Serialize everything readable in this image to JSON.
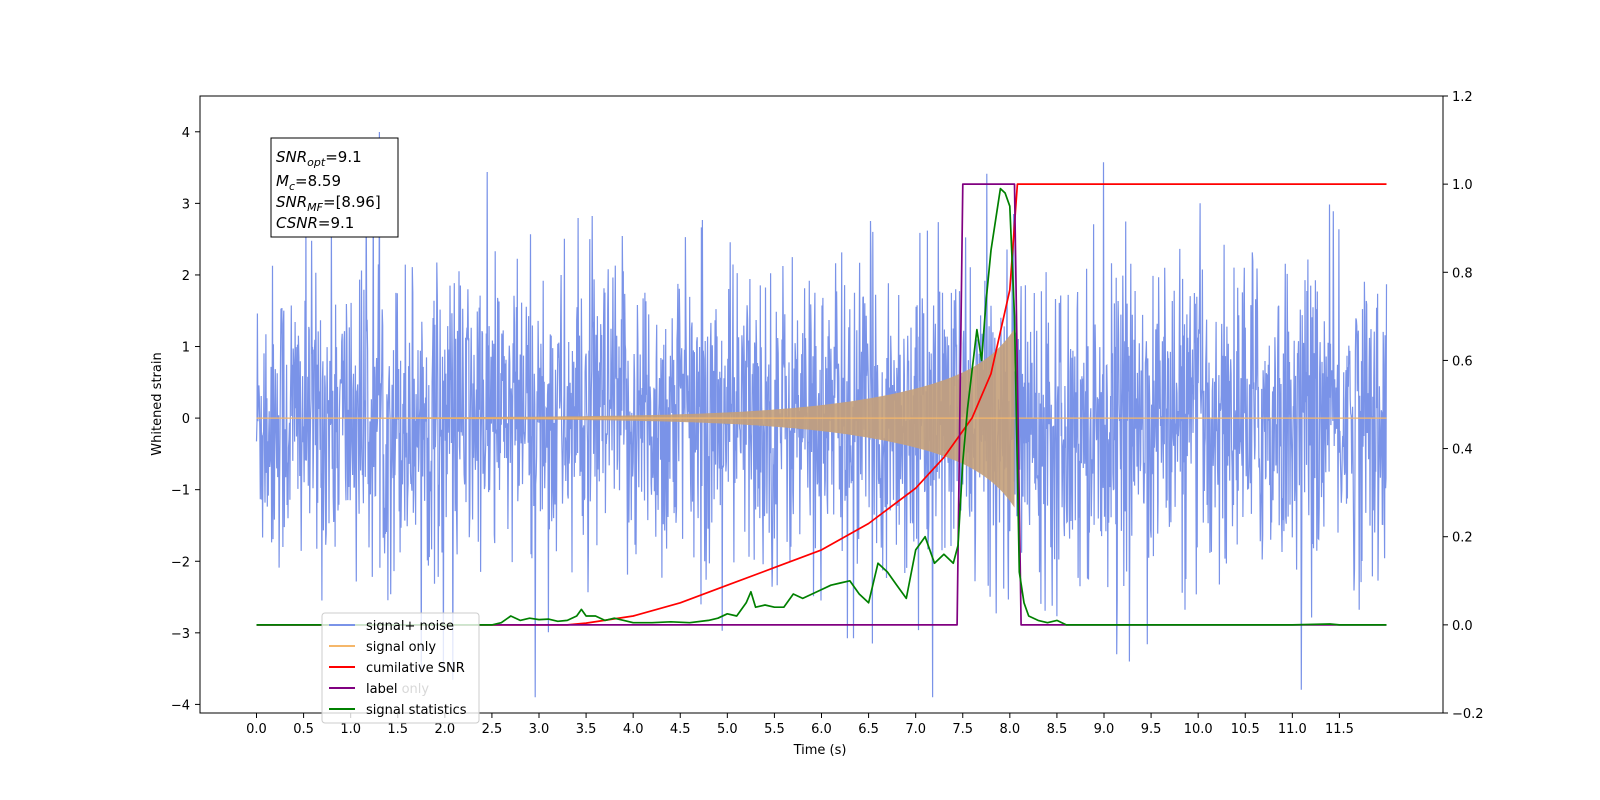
{
  "chart_data": {
    "type": "line",
    "xlabel": "Time (s)",
    "ylabel": "Whitened strain",
    "xlim": [
      -0.6,
      12.6
    ],
    "ylim": [
      -4.12,
      4.5
    ],
    "ylim_right": [
      -0.2,
      1.2
    ],
    "x_ticks": [
      "0.0",
      "0.5",
      "1.0",
      "1.5",
      "2.0",
      "2.5",
      "3.0",
      "3.5",
      "4.0",
      "4.5",
      "5.0",
      "5.5",
      "6.0",
      "6.5",
      "7.0",
      "7.5",
      "8.0",
      "8.5",
      "9.0",
      "9.5",
      "10.0",
      "10.5",
      "11.0",
      "11.5"
    ],
    "y_ticks_left": [
      "4",
      "3",
      "2",
      "1",
      "0",
      "−1",
      "−2",
      "−3",
      "−4"
    ],
    "y_ticks_right": [
      "1.2",
      "1.0",
      "0.8",
      "0.6",
      "0.4",
      "0.2",
      "0.0",
      "−0.2"
    ],
    "info_box": {
      "snr_opt": "=9.1",
      "mc": "=8.59",
      "snr_mf": "=[8.96]",
      "csnr": "=9.1"
    },
    "legend": {
      "placement": "lower-left",
      "entries": [
        "signal+ noise",
        "signal only",
        "cumilative SNR",
        "label",
        "signal statistics"
      ],
      "occluded_text": "label only"
    },
    "series": [
      {
        "name": "signal+ noise",
        "color": "#7a93e8",
        "axis": "left",
        "description": "whitened strain noise, amplitude roughly ±2.5 with spikes to ±4, spanning 0–12 s",
        "x_range": [
          0.0,
          12.0
        ],
        "envelope": 2.2
      },
      {
        "name": "signal only",
        "color": "#f5b76a",
        "axis": "left",
        "description": "chirp signal growing from 0 amplitude to ~1.2 at 8.05 s then zero",
        "chirp_start": 0.0,
        "chirp_end": 8.05,
        "peak_amplitude": 1.2
      },
      {
        "name": "cumilative SNR",
        "color": "#ff0000",
        "axis": "right",
        "x": [
          0.0,
          3.3,
          3.5,
          4.0,
          4.5,
          5.0,
          5.5,
          6.0,
          6.5,
          7.0,
          7.3,
          7.6,
          7.8,
          8.0,
          8.08,
          12.0
        ],
        "y": [
          0.0,
          0.0,
          0.004,
          0.02,
          0.05,
          0.09,
          0.13,
          0.17,
          0.23,
          0.31,
          0.38,
          0.47,
          0.57,
          0.76,
          1.0,
          1.0
        ]
      },
      {
        "name": "label",
        "color": "#800080",
        "axis": "right",
        "x": [
          0.0,
          7.44,
          7.5,
          8.05,
          8.12,
          12.0
        ],
        "y": [
          0.0,
          0.0,
          1.0,
          1.0,
          0.0,
          0.0
        ]
      },
      {
        "name": "signal statistics",
        "color": "#008000",
        "axis": "right",
        "x": [
          0.0,
          2.5,
          2.6,
          2.7,
          2.8,
          2.9,
          3.0,
          3.1,
          3.2,
          3.3,
          3.4,
          3.45,
          3.5,
          3.6,
          3.7,
          3.8,
          3.9,
          4.0,
          4.2,
          4.4,
          4.6,
          4.8,
          4.9,
          5.0,
          5.1,
          5.2,
          5.25,
          5.3,
          5.4,
          5.5,
          5.6,
          5.7,
          5.8,
          5.9,
          6.0,
          6.1,
          6.2,
          6.3,
          6.4,
          6.5,
          6.6,
          6.7,
          6.8,
          6.9,
          7.0,
          7.1,
          7.2,
          7.3,
          7.4,
          7.45,
          7.5,
          7.55,
          7.6,
          7.65,
          7.7,
          7.75,
          7.8,
          7.85,
          7.9,
          7.95,
          8.0,
          8.05,
          8.1,
          8.15,
          8.2,
          8.3,
          8.4,
          8.5,
          8.6,
          8.8,
          9.0,
          10.0,
          11.0,
          11.4,
          11.5,
          12.0
        ],
        "y": [
          0.0,
          0.0,
          0.005,
          0.02,
          0.01,
          0.015,
          0.012,
          0.013,
          0.008,
          0.01,
          0.02,
          0.035,
          0.02,
          0.02,
          0.01,
          0.015,
          0.01,
          0.005,
          0.005,
          0.007,
          0.005,
          0.01,
          0.015,
          0.025,
          0.02,
          0.05,
          0.075,
          0.04,
          0.045,
          0.04,
          0.04,
          0.07,
          0.06,
          0.07,
          0.08,
          0.09,
          0.095,
          0.1,
          0.07,
          0.05,
          0.14,
          0.12,
          0.09,
          0.06,
          0.17,
          0.2,
          0.14,
          0.16,
          0.14,
          0.18,
          0.37,
          0.49,
          0.58,
          0.67,
          0.6,
          0.74,
          0.85,
          0.92,
          0.99,
          0.98,
          0.95,
          0.7,
          0.12,
          0.05,
          0.02,
          0.01,
          0.005,
          0.01,
          0.0,
          0.0,
          0.0,
          0.0,
          0.0,
          0.002,
          0.0,
          0.0
        ]
      }
    ]
  }
}
